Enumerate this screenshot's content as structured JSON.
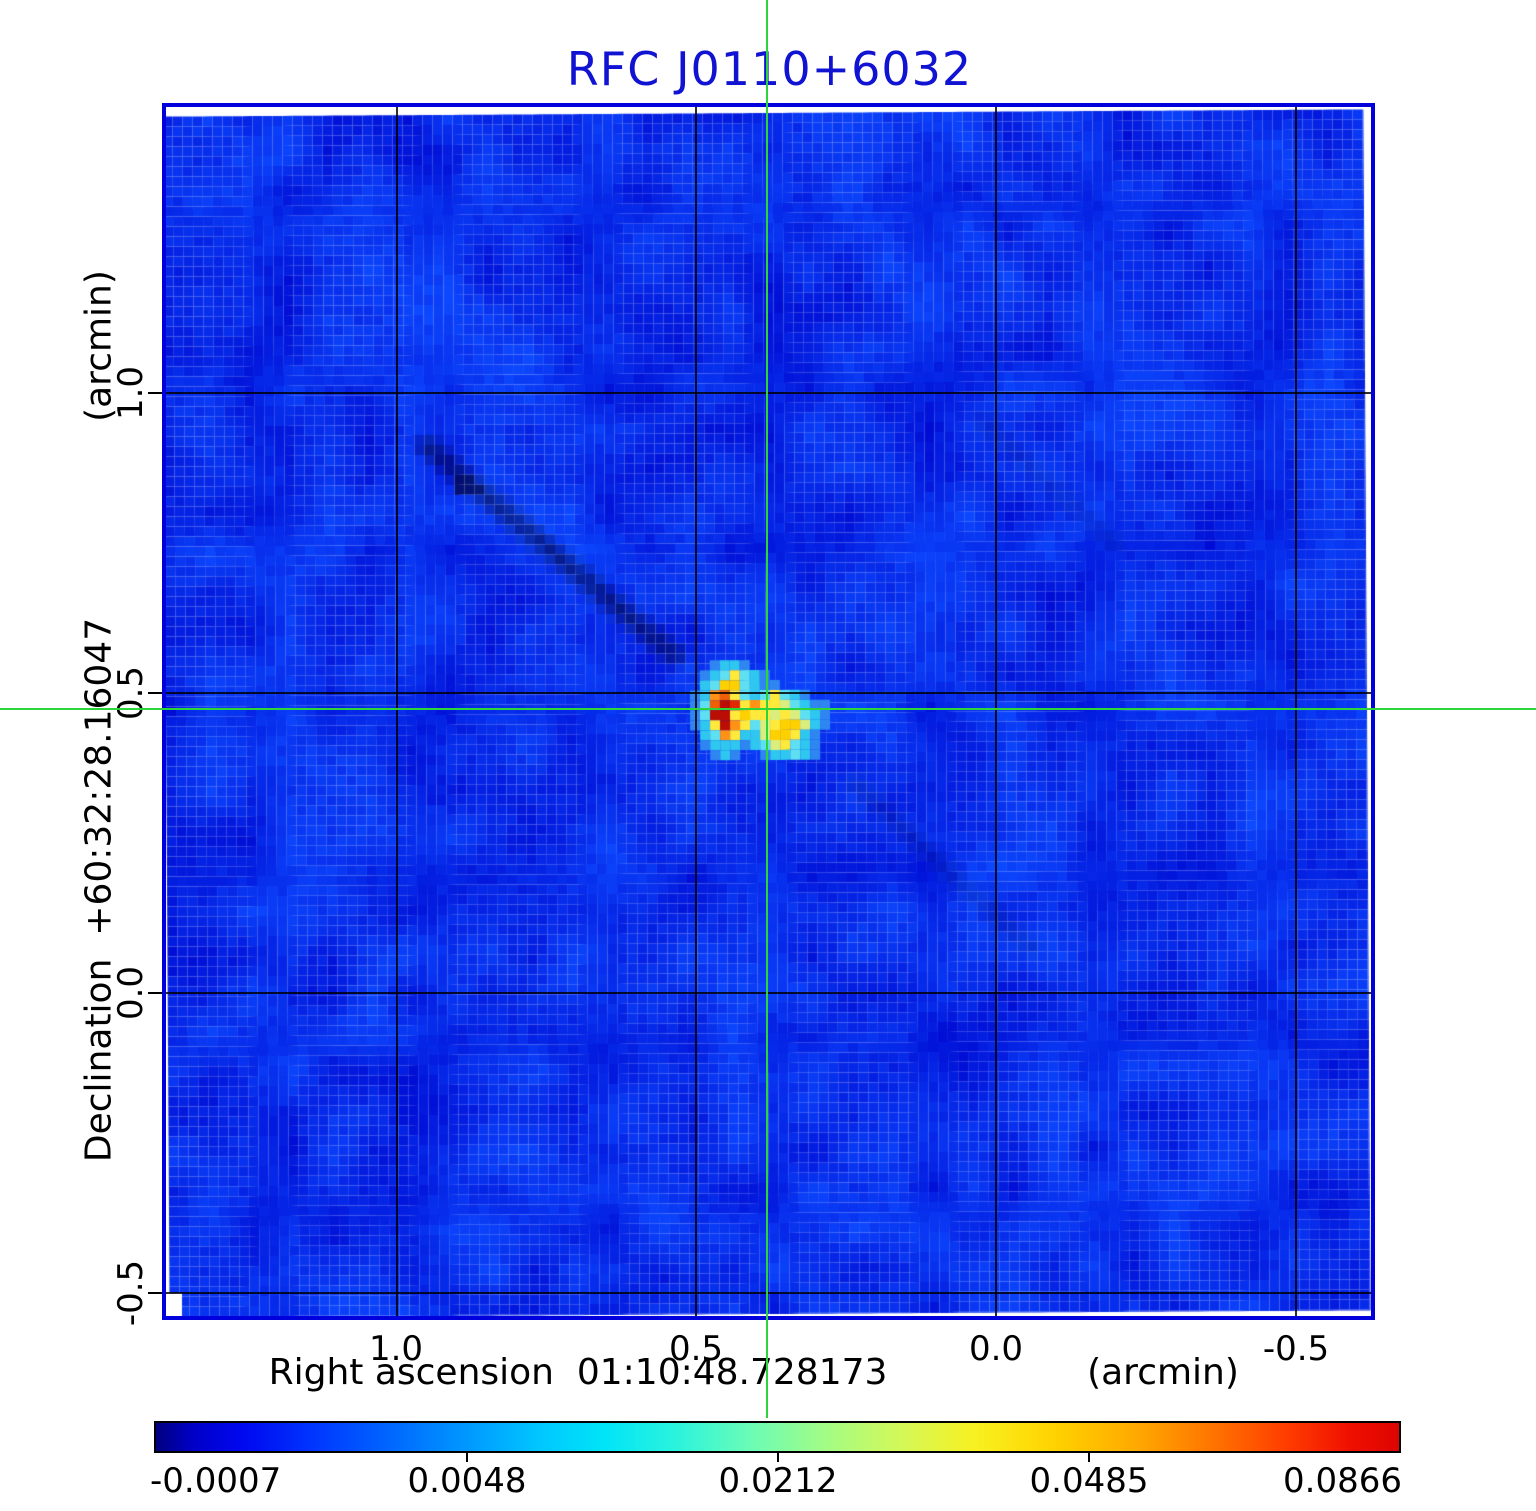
{
  "title": {
    "text": "RFC J0110+6032"
  },
  "colors": {
    "title": "#1113d2",
    "frame": "#0000dd",
    "crosshair": "#2ed43c",
    "gridline": "#111111",
    "noise_base": "#0a2ce4"
  },
  "axes": {
    "x": {
      "label": "Right ascension  01:10:48.728173",
      "unit": "(arcmin)",
      "ticks": [
        {
          "label": "1.0"
        },
        {
          "label": "0.5"
        },
        {
          "label": "0.0"
        },
        {
          "label": "-0.5"
        }
      ]
    },
    "y": {
      "label": "Declination  +60:32:28.16047",
      "unit": "(arcmin)",
      "ticks": [
        {
          "label": "1.0"
        },
        {
          "label": "0.5"
        },
        {
          "label": "0.0"
        },
        {
          "label": "-0.5"
        }
      ]
    }
  },
  "colorbar": {
    "ticks": [
      {
        "label": "-0.0007"
      },
      {
        "label": "0.0048"
      },
      {
        "label": "0.0212"
      },
      {
        "label": "0.0485"
      },
      {
        "label": "0.0866"
      }
    ],
    "gradient_stops": [
      "#00007f 0%",
      "#0000c8 3%",
      "#0008f0 7%",
      "#0038ff 13%",
      "#0068ff 19%",
      "#0098ff 25%",
      "#00c8ff 31%",
      "#00e4f8 36%",
      "#2cf4dc 42%",
      "#6cfcb4 48%",
      "#a4fc84 54%",
      "#d4f858 60%",
      "#f8f020 66%",
      "#ffd400 72%",
      "#ffa800 79%",
      "#ff7400 85%",
      "#ff3c00 91%",
      "#f01000 96%",
      "#dc0400 100%"
    ]
  },
  "chart_data": {
    "type": "heatmap",
    "title": "RFC J0110+6032",
    "xlabel": "Right ascension 01:10:48.728173 (arcmin)",
    "ylabel": "Declination +60:32:28.16047 (arcmin)",
    "xlim": [
      1.38,
      -0.63
    ],
    "ylim": [
      -0.54,
      1.48
    ],
    "x_ticks": [
      1.0,
      0.5,
      0.0,
      -0.5
    ],
    "y_ticks": [
      1.0,
      0.5,
      0.0,
      -0.5
    ],
    "colorbar_values": [
      -0.0007,
      0.0048,
      0.0212,
      0.0485,
      0.0866
    ],
    "peak_value": 0.0866,
    "background_level": 0.0,
    "crosshair_arcmin": {
      "x": 0.38,
      "y": 0.47
    },
    "source": {
      "cell_size_px": 10,
      "grid": [
        "..bccb.........",
        ".bcdydcb.......",
        ".cdYYdcbb......",
        "bcoOydcdydcb...",
        "bdORryoyypdcbb.",
        "bdRRyYyypypdcb.",
        "bcyRoydpyYYpcb.",
        ".cdoyccpYYycb..",
        ".bcccbcdpydcb..",
        "..bcb..bccdcb.."
      ],
      "legend": {
        "b": "#2f86f0",
        "c": "#2fc6f0",
        "d": "#5fe0f2",
        "p": "#d9ee7c",
        "y": "#ffe93a",
        "Y": "#ffd000",
        "o": "#ff9214",
        "O": "#ee5f08",
        "r": "#e22800",
        "R": "#b90d05"
      }
    }
  }
}
